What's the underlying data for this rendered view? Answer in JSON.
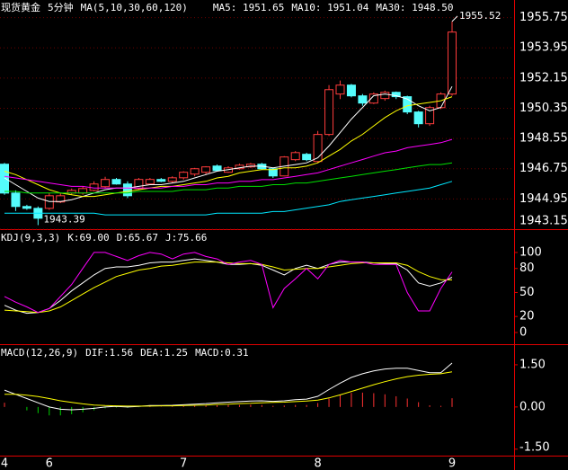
{
  "chart_data": [
    {
      "type": "candlestick",
      "title": "现货黄金",
      "period": "5分钟",
      "indicator": "MA(5,10,30,60,120)",
      "open": [
        1947.02,
        1945.3,
        1944.5,
        1944.39,
        1944.39,
        1944.77,
        1945.3,
        1945.3,
        1945.46,
        1945.68,
        1946.11,
        1945.84,
        1945.57,
        1945.84,
        1946.11,
        1946.0,
        1946.21,
        1946.43,
        1946.54,
        1946.91,
        1946.54,
        1946.75,
        1946.86,
        1947.02,
        1946.75,
        1946.32,
        1947.29,
        1947.61,
        1947.18,
        1948.79,
        1951.2,
        1951.73,
        1951.09,
        1950.66,
        1950.93,
        1951.3,
        1951.04,
        1950.13,
        1949.43,
        1950.39,
        1951.2
      ],
      "high": [
        1947.1,
        1945.46,
        1944.6,
        1944.5,
        1945.3,
        1945.3,
        1945.57,
        1945.7,
        1946.0,
        1946.27,
        1946.2,
        1946.0,
        1946.2,
        1946.2,
        1946.2,
        1946.3,
        1946.6,
        1946.8,
        1946.9,
        1947.0,
        1946.9,
        1947.05,
        1947.1,
        1947.1,
        1946.8,
        1947.5,
        1947.8,
        1947.7,
        1949.0,
        1951.73,
        1952.0,
        1951.8,
        1951.2,
        1951.3,
        1951.4,
        1951.35,
        1951.1,
        1950.2,
        1950.5,
        1951.3,
        1955.52
      ],
      "low": [
        1945.2,
        1944.23,
        1944.3,
        1943.39,
        1944.3,
        1944.7,
        1945.2,
        1945.2,
        1945.4,
        1945.6,
        1945.8,
        1945.0,
        1945.5,
        1945.8,
        1945.95,
        1945.9,
        1946.1,
        1946.3,
        1946.4,
        1946.6,
        1946.5,
        1946.7,
        1946.8,
        1946.7,
        1946.2,
        1946.3,
        1947.2,
        1947.2,
        1947.1,
        1948.7,
        1950.9,
        1951.0,
        1950.5,
        1950.6,
        1950.8,
        1950.9,
        1950.0,
        1949.21,
        1949.3,
        1950.3,
        1951.1
      ],
      "close": [
        1945.3,
        1944.5,
        1944.39,
        1943.8,
        1945.14,
        1945.14,
        1945.46,
        1945.57,
        1945.84,
        1946.11,
        1945.84,
        1945.14,
        1946.11,
        1946.11,
        1946.0,
        1946.21,
        1946.54,
        1946.75,
        1946.86,
        1946.64,
        1946.8,
        1946.96,
        1947.02,
        1946.75,
        1946.32,
        1947.45,
        1947.71,
        1947.29,
        1948.79,
        1951.46,
        1951.73,
        1951.09,
        1950.66,
        1951.2,
        1951.3,
        1951.04,
        1950.13,
        1949.43,
        1950.39,
        1951.2,
        1954.89
      ],
      "up_color": "#ff3c3c",
      "down_color": "#54fcfc",
      "series": [
        {
          "name": "MA5: 1951.65",
          "color": "#ffffff",
          "values": [
            1946.2,
            1945.8,
            1945.4,
            1945.0,
            1944.8,
            1944.8,
            1944.9,
            1945.1,
            1945.3,
            1945.5,
            1945.6,
            1945.6,
            1945.7,
            1945.8,
            1945.8,
            1945.9,
            1946.0,
            1946.2,
            1946.4,
            1946.6,
            1946.7,
            1946.8,
            1946.9,
            1946.9,
            1946.8,
            1946.9,
            1947.0,
            1947.1,
            1947.4,
            1948.1,
            1948.9,
            1949.7,
            1950.4,
            1951.1,
            1951.2,
            1951.1,
            1950.9,
            1950.5,
            1950.2,
            1950.4,
            1951.65
          ]
        },
        {
          "name": "MA10: 1951.04",
          "color": "#ffff00",
          "values": [
            1946.6,
            1946.4,
            1946.1,
            1945.8,
            1945.5,
            1945.3,
            1945.2,
            1945.1,
            1945.1,
            1945.2,
            1945.3,
            1945.4,
            1945.5,
            1945.6,
            1945.7,
            1945.7,
            1945.8,
            1945.9,
            1946.0,
            1946.2,
            1946.3,
            1946.5,
            1946.6,
            1946.7,
            1946.7,
            1946.8,
            1946.8,
            1946.9,
            1947.1,
            1947.5,
            1947.9,
            1948.4,
            1948.8,
            1949.3,
            1949.8,
            1950.2,
            1950.5,
            1950.6,
            1950.7,
            1950.8,
            1951.04
          ]
        },
        {
          "name": "MA30: 1948.50",
          "color": "#ff00ff",
          "values": [
            1946.3,
            1946.2,
            1946.1,
            1946.0,
            1945.9,
            1945.8,
            1945.7,
            1945.7,
            1945.6,
            1945.6,
            1945.6,
            1945.6,
            1945.6,
            1945.6,
            1945.6,
            1945.7,
            1945.7,
            1945.8,
            1945.8,
            1945.9,
            1945.9,
            1946.0,
            1946.0,
            1946.1,
            1946.1,
            1946.2,
            1946.3,
            1946.4,
            1946.5,
            1946.7,
            1946.9,
            1947.1,
            1947.3,
            1947.5,
            1947.7,
            1947.8,
            1948.0,
            1948.1,
            1948.2,
            1948.3,
            1948.5
          ]
        },
        {
          "color": "#00e000",
          "values": [
            1945.4,
            1945.4,
            1945.3,
            1945.3,
            1945.3,
            1945.3,
            1945.3,
            1945.3,
            1945.3,
            1945.3,
            1945.3,
            1945.3,
            1945.4,
            1945.4,
            1945.4,
            1945.4,
            1945.5,
            1945.5,
            1945.5,
            1945.6,
            1945.6,
            1945.7,
            1945.7,
            1945.7,
            1945.8,
            1945.8,
            1945.9,
            1945.9,
            1946.0,
            1946.1,
            1946.2,
            1946.3,
            1946.4,
            1946.5,
            1946.6,
            1946.7,
            1946.8,
            1946.9,
            1947.0,
            1947.0,
            1947.1
          ]
        },
        {
          "color": "#00e8ff",
          "values": [
            1944.1,
            1944.1,
            1944.1,
            1944.1,
            1944.1,
            1944.1,
            1944.1,
            1944.1,
            1944.1,
            1944.0,
            1944.0,
            1944.0,
            1944.0,
            1944.0,
            1944.0,
            1944.0,
            1944.0,
            1944.0,
            1944.0,
            1944.1,
            1944.1,
            1944.1,
            1944.1,
            1944.1,
            1944.2,
            1944.2,
            1944.3,
            1944.4,
            1944.5,
            1944.6,
            1944.8,
            1944.9,
            1945.0,
            1945.1,
            1945.2,
            1945.3,
            1945.4,
            1945.5,
            1945.6,
            1945.8,
            1946.0
          ]
        }
      ],
      "ylim": [
        1943.15,
        1956.8
      ],
      "yticks": [
        1943.15,
        1944.95,
        1946.75,
        1948.55,
        1950.35,
        1952.15,
        1953.95,
        1955.75
      ],
      "grid": true
    },
    {
      "type": "line",
      "title": "KDJ(9,3,3)",
      "series": [
        {
          "name": "K:69.00",
          "color": "#ffffff",
          "values": [
            34,
            28,
            24,
            25,
            30,
            40,
            52,
            62,
            72,
            80,
            82,
            82,
            84,
            87,
            88,
            88,
            90,
            92,
            90,
            88,
            85,
            85,
            86,
            84,
            78,
            72,
            80,
            84,
            80,
            85,
            88,
            88,
            88,
            87,
            86,
            86,
            78,
            62,
            58,
            62,
            69
          ]
        },
        {
          "name": "D:65.67",
          "color": "#ffff00",
          "values": [
            28,
            27,
            26,
            25,
            27,
            32,
            40,
            48,
            56,
            63,
            70,
            74,
            78,
            80,
            83,
            84,
            86,
            88,
            88,
            88,
            87,
            86,
            86,
            85,
            82,
            78,
            79,
            80,
            80,
            82,
            84,
            86,
            87,
            87,
            87,
            87,
            84,
            76,
            70,
            66,
            65.67
          ]
        },
        {
          "name": "J:75.66",
          "color": "#ff00ff",
          "values": [
            45,
            38,
            32,
            25,
            30,
            45,
            60,
            80,
            100,
            100,
            95,
            90,
            96,
            100,
            98,
            92,
            98,
            100,
            95,
            92,
            85,
            88,
            90,
            85,
            31,
            55,
            67,
            80,
            67,
            85,
            90,
            88,
            88,
            85,
            85,
            85,
            50,
            27,
            27,
            55,
            75.66
          ]
        }
      ],
      "ylim": [
        -14.6,
        128
      ],
      "yticks": [
        0,
        20,
        50,
        80,
        100
      ]
    },
    {
      "type": "line",
      "title": "MACD(12,26,9)",
      "series": [
        {
          "name": "DIF:1.56",
          "color": "#ffffff",
          "values": [
            0.6,
            0.45,
            0.3,
            0.15,
            0.0,
            -0.08,
            -0.1,
            -0.08,
            -0.05,
            0.0,
            0.02,
            0.0,
            0.02,
            0.05,
            0.05,
            0.06,
            0.08,
            0.1,
            0.12,
            0.15,
            0.17,
            0.19,
            0.21,
            0.22,
            0.2,
            0.22,
            0.26,
            0.28,
            0.38,
            0.62,
            0.85,
            1.05,
            1.18,
            1.28,
            1.35,
            1.38,
            1.38,
            1.3,
            1.22,
            1.22,
            1.56
          ]
        },
        {
          "name": "DEA:1.25",
          "color": "#ffff00",
          "values": [
            0.45,
            0.45,
            0.42,
            0.37,
            0.3,
            0.22,
            0.16,
            0.11,
            0.07,
            0.05,
            0.04,
            0.03,
            0.03,
            0.03,
            0.04,
            0.04,
            0.05,
            0.06,
            0.07,
            0.09,
            0.1,
            0.12,
            0.13,
            0.15,
            0.16,
            0.17,
            0.19,
            0.21,
            0.24,
            0.32,
            0.43,
            0.55,
            0.67,
            0.79,
            0.9,
            1.0,
            1.08,
            1.13,
            1.16,
            1.18,
            1.25
          ]
        },
        {
          "name": "MACD:0.31",
          "type": "bar",
          "color": "#ff3232",
          "negative_color": "#00d000",
          "values": [
            0.15,
            0.0,
            -0.12,
            -0.22,
            -0.3,
            -0.3,
            -0.26,
            -0.19,
            -0.12,
            -0.05,
            -0.02,
            -0.03,
            -0.01,
            0.02,
            0.01,
            0.02,
            0.03,
            0.04,
            0.05,
            0.06,
            0.07,
            0.07,
            0.08,
            0.07,
            0.04,
            0.05,
            0.07,
            0.07,
            0.14,
            0.3,
            0.42,
            0.5,
            0.51,
            0.49,
            0.45,
            0.38,
            0.3,
            0.17,
            0.06,
            0.04,
            0.31
          ]
        }
      ],
      "ylim": [
        -1.73,
        2.2
      ],
      "yticks": [
        {
          "value": -1.5,
          "label": "-1.50"
        },
        {
          "value": 0,
          "label": "0.00"
        },
        {
          "value": 1.5,
          "label": "1.50"
        }
      ],
      "categories": [
        "4",
        null,
        null,
        null,
        "6",
        null,
        null,
        null,
        null,
        null,
        null,
        null,
        null,
        null,
        null,
        null,
        "7",
        null,
        null,
        null,
        null,
        null,
        null,
        null,
        null,
        null,
        null,
        null,
        "8",
        null,
        null,
        null,
        null,
        null,
        null,
        null,
        null,
        null,
        null,
        null,
        "9"
      ]
    }
  ]
}
